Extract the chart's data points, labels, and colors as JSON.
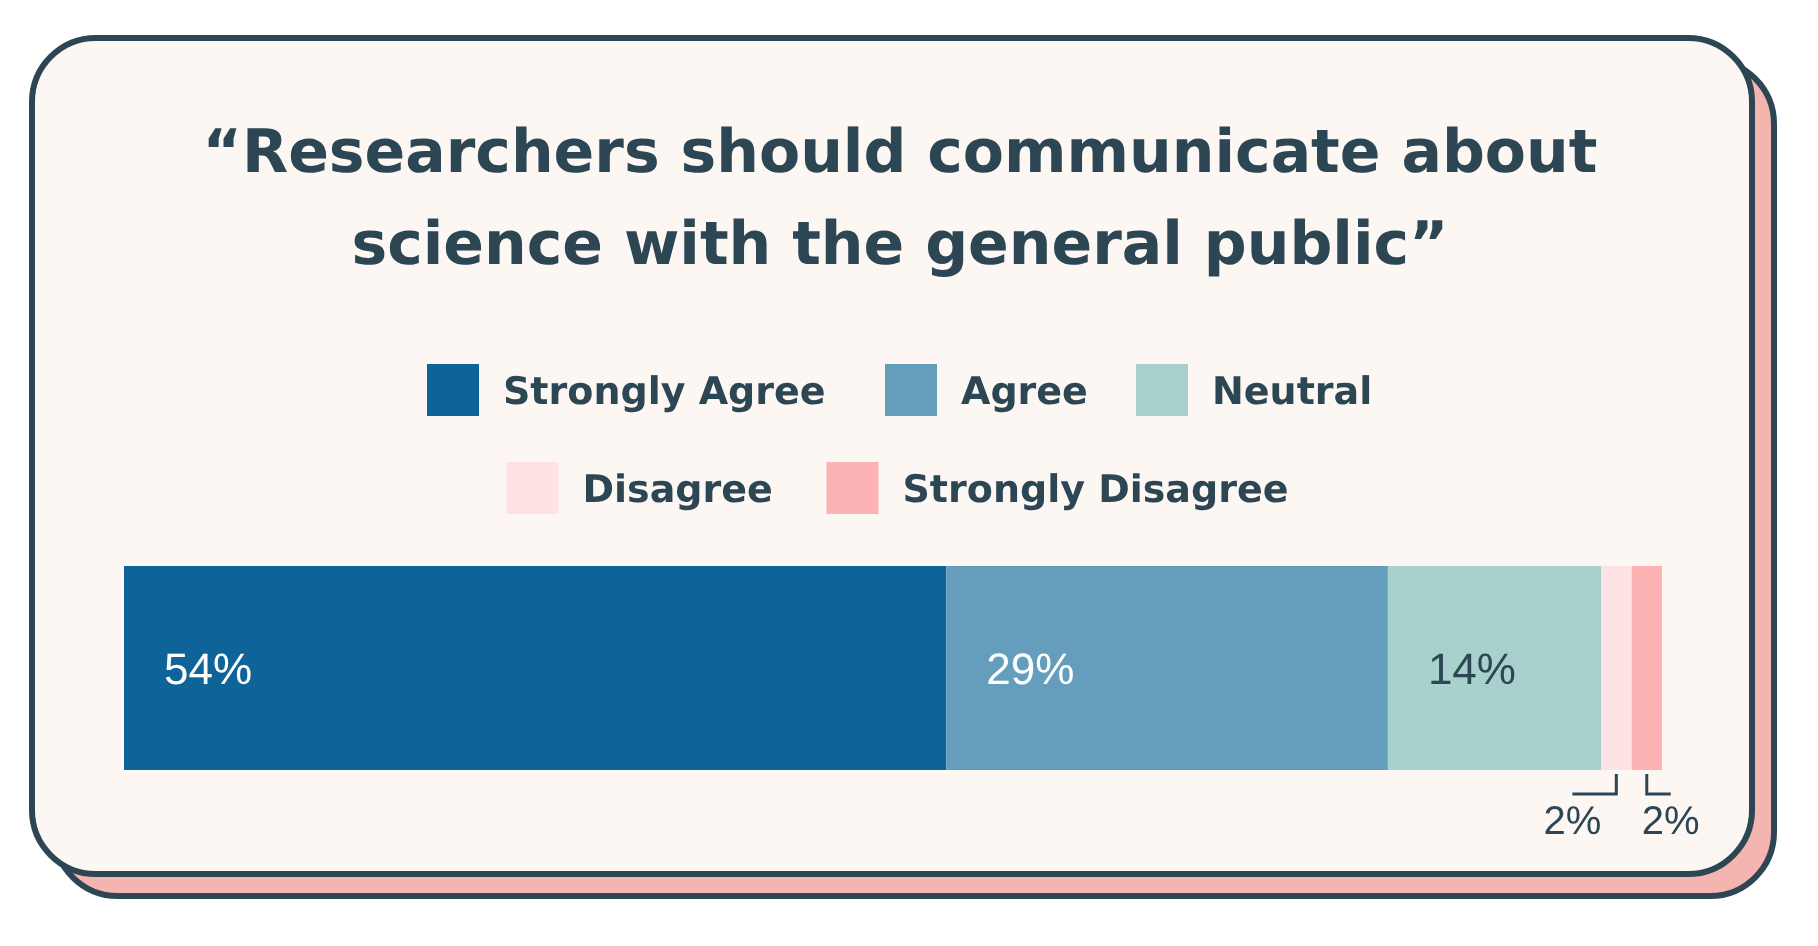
{
  "chart_data": {
    "type": "bar",
    "orientation": "horizontal",
    "stacked": true,
    "title": "“Researchers should communicate about science with the general public”",
    "categories": [
      null
    ],
    "legend": "top",
    "series": [
      {
        "name": "Strongly Agree",
        "color": "#0e6399",
        "values": [
          54
        ],
        "value_labels": [
          "54%"
        ]
      },
      {
        "name": "Agree",
        "color": "#659dbd",
        "values": [
          29
        ],
        "value_labels": [
          "29%"
        ]
      },
      {
        "name": "Neutral",
        "color": "#a8d0cc",
        "values": [
          14
        ],
        "value_labels": [
          "14%"
        ]
      },
      {
        "name": "Disagree",
        "color": "#fde3e3",
        "values": [
          2
        ],
        "value_labels": [
          "2%"
        ]
      },
      {
        "name": "Strongly Disagree",
        "color": "#fdb3b3",
        "values": [
          2
        ],
        "value_labels": [
          "2%"
        ]
      }
    ]
  }
}
